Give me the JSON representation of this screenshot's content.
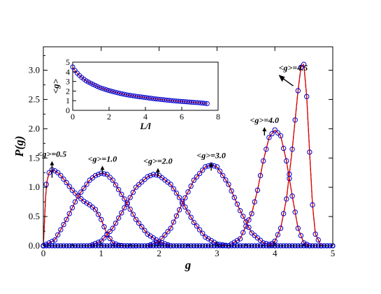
{
  "chart_data": [
    {
      "type": "line",
      "xlabel": "g",
      "ylabel": "P(g)",
      "xlim": [
        0,
        5
      ],
      "ylim": [
        0,
        3.4
      ],
      "xticks": [
        "0",
        "1",
        "2",
        "3",
        "4",
        "5"
      ],
      "yticks": [
        "0.0",
        "0.5",
        "1.0",
        "1.5",
        "2.0",
        "2.5",
        "3.0"
      ],
      "series_style": {
        "histogram": {
          "color": "#000000",
          "style": "dashed"
        },
        "fit": {
          "color": "#e00000",
          "style": "solid"
        },
        "data": {
          "color": "#0000cc",
          "style": "open-circles"
        }
      },
      "annotations": [
        {
          "text": "<g>=0.5",
          "x": 0.15,
          "y": 1.52,
          "arrow": "up"
        },
        {
          "text": "<g>=1.0",
          "x": 1.02,
          "y": 1.44,
          "arrow": "up"
        },
        {
          "text": "<g>=2.0",
          "x": 1.98,
          "y": 1.4,
          "arrow": "up"
        },
        {
          "text": "<g>=3.0",
          "x": 2.9,
          "y": 1.5,
          "arrow": "up"
        },
        {
          "text": "<g>=4.0",
          "x": 3.82,
          "y": 2.1,
          "arrow": "up"
        },
        {
          "text": "<g>=4.5",
          "x": 4.1,
          "y": 2.85,
          "arrow": "up-left"
        }
      ],
      "series": [
        {
          "mean": 0.5,
          "x": [
            0.0,
            0.05,
            0.1,
            0.15,
            0.2,
            0.25,
            0.3,
            0.4,
            0.5,
            0.6,
            0.7,
            0.8,
            0.9,
            1.0,
            1.1,
            1.2,
            1.3,
            1.4,
            1.5,
            1.6
          ],
          "y": [
            0.0,
            1.05,
            1.25,
            1.3,
            1.28,
            1.25,
            1.2,
            1.08,
            0.95,
            0.85,
            0.76,
            0.7,
            0.62,
            0.45,
            0.2,
            0.05,
            0.01,
            0.0,
            0.0,
            0.0
          ]
        },
        {
          "mean": 1.0,
          "x": [
            0.0,
            0.2,
            0.4,
            0.6,
            0.8,
            0.9,
            1.0,
            1.1,
            1.2,
            1.4,
            1.6,
            1.8,
            2.0,
            2.2
          ],
          "y": [
            0.0,
            0.1,
            0.45,
            0.85,
            1.12,
            1.2,
            1.24,
            1.22,
            1.12,
            0.8,
            0.45,
            0.2,
            0.07,
            0.0
          ]
        },
        {
          "mean": 2.0,
          "x": [
            0.8,
            1.0,
            1.2,
            1.4,
            1.6,
            1.8,
            1.9,
            2.0,
            2.2,
            2.4,
            2.6,
            2.8,
            3.0,
            3.2
          ],
          "y": [
            0.0,
            0.08,
            0.3,
            0.65,
            1.0,
            1.18,
            1.22,
            1.2,
            1.05,
            0.75,
            0.4,
            0.15,
            0.03,
            0.0
          ]
        },
        {
          "mean": 3.0,
          "x": [
            1.8,
            2.0,
            2.2,
            2.4,
            2.6,
            2.8,
            2.9,
            3.0,
            3.2,
            3.4,
            3.6,
            3.8,
            4.0
          ],
          "y": [
            0.0,
            0.07,
            0.3,
            0.72,
            1.12,
            1.35,
            1.38,
            1.35,
            1.05,
            0.6,
            0.22,
            0.05,
            0.0
          ]
        },
        {
          "mean": 4.0,
          "x": [
            3.2,
            3.4,
            3.6,
            3.7,
            3.8,
            3.9,
            4.0,
            4.1,
            4.2,
            4.3,
            4.4,
            4.5,
            4.6
          ],
          "y": [
            0.0,
            0.12,
            0.55,
            0.95,
            1.45,
            1.85,
            1.98,
            1.88,
            1.45,
            0.85,
            0.3,
            0.05,
            0.0
          ]
        },
        {
          "mean": 4.5,
          "x": [
            3.9,
            4.0,
            4.1,
            4.2,
            4.3,
            4.4,
            4.45,
            4.5,
            4.55,
            4.6,
            4.65,
            4.7,
            4.8
          ],
          "y": [
            0.0,
            0.08,
            0.3,
            0.8,
            1.65,
            2.65,
            3.05,
            3.1,
            2.55,
            1.6,
            0.7,
            0.2,
            0.0
          ]
        }
      ]
    },
    {
      "type": "line",
      "inset": true,
      "xlabel": "L/l",
      "ylabel": "<g>",
      "xlim": [
        0,
        8
      ],
      "ylim": [
        0,
        5
      ],
      "xticks": [
        "0",
        "2",
        "4",
        "6",
        "8"
      ],
      "yticks": [
        "0",
        "1",
        "2",
        "3",
        "4",
        "5"
      ],
      "series": [
        {
          "x": [
            0.0,
            0.1,
            0.2,
            0.3,
            0.5,
            0.75,
            1.0,
            1.5,
            2.0,
            2.5,
            3.0,
            3.5,
            4.0,
            4.5,
            5.0,
            5.5,
            6.0,
            6.5,
            7.0,
            7.4
          ],
          "y": [
            4.5,
            4.2,
            3.95,
            3.75,
            3.4,
            3.05,
            2.8,
            2.35,
            2.05,
            1.8,
            1.6,
            1.45,
            1.33,
            1.2,
            1.1,
            1.0,
            0.92,
            0.85,
            0.78,
            0.7
          ]
        }
      ]
    }
  ]
}
